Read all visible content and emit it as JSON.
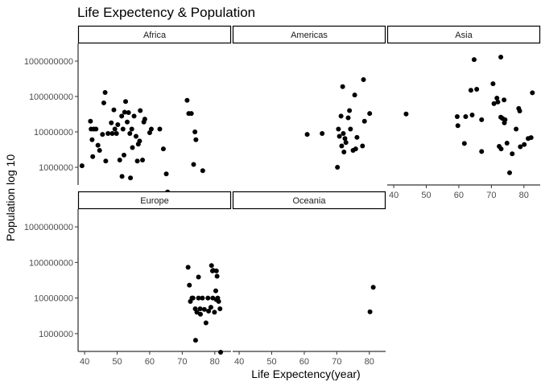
{
  "chart_data": {
    "type": "scatter",
    "title": "Life Expectency & Population",
    "xlabel": "Life Expectency(year)",
    "ylabel": "Population log 10",
    "xlim": [
      38,
      85
    ],
    "ylim_log10": [
      5.5,
      9.5
    ],
    "y_scale": "log10",
    "x_ticks": [
      40,
      50,
      60,
      70,
      80
    ],
    "y_ticks": [
      1000000,
      10000000,
      100000000,
      1000000000
    ],
    "y_tick_labels": [
      "1000000",
      "10000000",
      "100000000",
      "1000000000"
    ],
    "grid": false,
    "point_color": "#000000",
    "panels": [
      {
        "name": "Africa",
        "points": [
          [
            39.2,
            1100000.0
          ],
          [
            41.8,
            20000000.0
          ],
          [
            42,
            12000000.0
          ],
          [
            42.3,
            6000000.0
          ],
          [
            42.5,
            2000000.0
          ],
          [
            42.8,
            12000000.0
          ],
          [
            43.5,
            12000000.0
          ],
          [
            44.1,
            4200000.0
          ],
          [
            44.6,
            3000000.0
          ],
          [
            45.5,
            8500000.0
          ],
          [
            45.9,
            66000000.0
          ],
          [
            46.3,
            130000000.0
          ],
          [
            46.5,
            1500000.0
          ],
          [
            47.2,
            9000000.0
          ],
          [
            48.2,
            18000000.0
          ],
          [
            48.5,
            9000000.0
          ],
          [
            49,
            42000000.0
          ],
          [
            49.3,
            12000000.0
          ],
          [
            49.8,
            9000000.0
          ],
          [
            50.2,
            16000000.0
          ],
          [
            50.8,
            1600000.0
          ],
          [
            51.4,
            28000000.0
          ],
          [
            51.5,
            550000.0
          ],
          [
            51.8,
            12000000.0
          ],
          [
            52.1,
            2200000.0
          ],
          [
            52.3,
            36000000.0
          ],
          [
            52.6,
            72000000.0
          ],
          [
            53.1,
            19000000.0
          ],
          [
            53.5,
            35000000.0
          ],
          [
            53.9,
            9000000.0
          ],
          [
            54.1,
            500000.0
          ],
          [
            54.5,
            12000000.0
          ],
          [
            54.7,
            3600000.0
          ],
          [
            55.2,
            28000000.0
          ],
          [
            55.8,
            7500000.0
          ],
          [
            56.2,
            1500000.0
          ],
          [
            56.5,
            4500000.0
          ],
          [
            56.9,
            5500000.0
          ],
          [
            57.1,
            40000000.0
          ],
          [
            57.8,
            1600000.0
          ],
          [
            58.2,
            19000000.0
          ],
          [
            58.5,
            23000000.0
          ],
          [
            60,
            9500000.0
          ],
          [
            60.5,
            12000000.0
          ],
          [
            63.1,
            12000000.0
          ],
          [
            64.2,
            3300000.0
          ],
          [
            65.1,
            650000.0
          ],
          [
            65.5,
            200000.0
          ],
          [
            71.5,
            78000000.0
          ],
          [
            72,
            33000000.0
          ],
          [
            72.8,
            33000000.0
          ],
          [
            73.9,
            10000000.0
          ],
          [
            74.2,
            6000000.0
          ],
          [
            73.5,
            1200000.0
          ],
          [
            76.3,
            800000.0
          ]
        ]
      },
      {
        "name": "Americas",
        "points": [
          [
            60.9,
            8500000.0
          ],
          [
            65.5,
            9000000.0
          ],
          [
            70.2,
            1000000.0
          ],
          [
            70.5,
            12000000.0
          ],
          [
            70.8,
            7500000.0
          ],
          [
            71.3,
            28000000.0
          ],
          [
            71.8,
            190000000.0
          ],
          [
            71.5,
            4000000.0
          ],
          [
            72,
            9000000.0
          ],
          [
            72.2,
            2700000.0
          ],
          [
            72.5,
            6500000.0
          ],
          [
            72.8,
            5000000.0
          ],
          [
            73.5,
            25000000.0
          ],
          [
            73.9,
            40000000.0
          ],
          [
            74.2,
            12000000.0
          ],
          [
            75,
            3000000.0
          ],
          [
            75.5,
            110000000.0
          ],
          [
            75.8,
            3300000.0
          ],
          [
            76.2,
            7000000.0
          ],
          [
            77.9,
            4000000.0
          ],
          [
            78.2,
            300000000.0
          ],
          [
            78.5,
            20000000.0
          ],
          [
            80.1,
            33000000.0
          ]
        ]
      },
      {
        "name": "Asia",
        "points": [
          [
            43.8,
            32000000.0
          ],
          [
            59.5,
            27000000.0
          ],
          [
            59.7,
            15000000.0
          ],
          [
            61.7,
            4700000.0
          ],
          [
            62.1,
            27000000.0
          ],
          [
            63.7,
            150000000.0
          ],
          [
            64.1,
            30000000.0
          ],
          [
            64.7,
            1100000000.0
          ],
          [
            65.5,
            160000000.0
          ],
          [
            67,
            22000000.0
          ],
          [
            67,
            2800000.0
          ],
          [
            70.5,
            230000000.0
          ],
          [
            70.8,
            63000000.0
          ],
          [
            71.7,
            90000000.0
          ],
          [
            72,
            70000000.0
          ],
          [
            72.4,
            3900000.0
          ],
          [
            72.9,
            26000000.0
          ],
          [
            72.9,
            1300000000.0
          ],
          [
            73,
            3300000.0
          ],
          [
            73.4,
            24000000.0
          ],
          [
            73.9,
            80000000.0
          ],
          [
            74,
            18000000.0
          ],
          [
            74.2,
            22000000.0
          ],
          [
            74.8,
            4800000.0
          ],
          [
            75.6,
            700000.0
          ],
          [
            76.4,
            2400000.0
          ],
          [
            77.6,
            12000000.0
          ],
          [
            78.4,
            46000000.0
          ],
          [
            78.7,
            39000000.0
          ],
          [
            78.9,
            3800000.0
          ],
          [
            80.1,
            4400000.0
          ],
          [
            81.3,
            6500000.0
          ],
          [
            82.2,
            6900000.0
          ],
          [
            82.6,
            127000000.0
          ]
        ]
      },
      {
        "name": "Europe",
        "points": [
          [
            71.8,
            73000000.0
          ],
          [
            72.2,
            23000000.0
          ],
          [
            72.5,
            8000000.0
          ],
          [
            73,
            10000000.0
          ],
          [
            73.3,
            10000000.0
          ],
          [
            74,
            5000000.0
          ],
          [
            74.1,
            650000.0
          ],
          [
            74.5,
            4000000.0
          ],
          [
            75,
            39000000.0
          ],
          [
            75,
            10000000.0
          ],
          [
            75.5,
            5000000.0
          ],
          [
            75.6,
            3500000.0
          ],
          [
            76.2,
            10000000.0
          ],
          [
            76.8,
            4800000.0
          ],
          [
            77.3,
            2000000.0
          ],
          [
            77.9,
            10000000.0
          ],
          [
            78.1,
            4300000.0
          ],
          [
            78.8,
            5500000.0
          ],
          [
            79,
            82000000.0
          ],
          [
            79.3,
            58000000.0
          ],
          [
            79.4,
            10000000.0
          ],
          [
            79.5,
            60000000.0
          ],
          [
            79.9,
            4000000.0
          ],
          [
            80.3,
            16000000.0
          ],
          [
            80.5,
            9000000.0
          ],
          [
            80.5,
            58000000.0
          ],
          [
            80.7,
            41000000.0
          ],
          [
            80.9,
            10000000.0
          ],
          [
            81.2,
            8000000.0
          ],
          [
            81.6,
            5000000.0
          ],
          [
            81.8,
            300000.0
          ]
        ]
      },
      {
        "name": "Oceania",
        "points": [
          [
            80.2,
            4100000.0
          ],
          [
            81.2,
            20000000.0
          ]
        ]
      }
    ]
  }
}
